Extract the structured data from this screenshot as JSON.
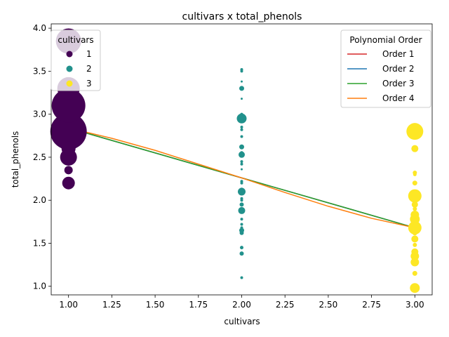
{
  "chart_data": {
    "type": "scatter",
    "title": "cultivars x total_phenols",
    "xlabel": "cultivars",
    "ylabel": "total_phenols",
    "xlim": [
      0.9,
      3.1
    ],
    "ylim": [
      0.9,
      4.05
    ],
    "x_ticks": [
      "1.00",
      "1.25",
      "1.50",
      "1.75",
      "2.00",
      "2.25",
      "2.50",
      "2.75",
      "3.00"
    ],
    "y_ticks": [
      "1.0",
      "1.5",
      "2.0",
      "2.5",
      "3.0",
      "3.5",
      "4.0"
    ],
    "grid": false,
    "scatter_series": [
      {
        "name": "1",
        "color": "#440154",
        "points": [
          {
            "x": 1,
            "y": 3.85,
            "size": 18
          },
          {
            "x": 1,
            "y": 3.3,
            "size": 16
          },
          {
            "x": 1,
            "y": 3.1,
            "size": 24
          },
          {
            "x": 1,
            "y": 2.8,
            "size": 26
          },
          {
            "x": 1,
            "y": 2.6,
            "size": 10
          },
          {
            "x": 1,
            "y": 2.5,
            "size": 12
          },
          {
            "x": 1,
            "y": 2.35,
            "size": 6
          },
          {
            "x": 1,
            "y": 2.2,
            "size": 9
          }
        ]
      },
      {
        "name": "2",
        "color": "#21918c",
        "points": [
          {
            "x": 2,
            "y": 3.52,
            "size": 2
          },
          {
            "x": 2,
            "y": 3.5,
            "size": 2
          },
          {
            "x": 2,
            "y": 3.38,
            "size": 1.5
          },
          {
            "x": 2,
            "y": 3.3,
            "size": 3.5
          },
          {
            "x": 2,
            "y": 3.18,
            "size": 1.5
          },
          {
            "x": 2,
            "y": 3.0,
            "size": 2
          },
          {
            "x": 2,
            "y": 2.95,
            "size": 7
          },
          {
            "x": 2,
            "y": 2.85,
            "size": 2
          },
          {
            "x": 2,
            "y": 2.82,
            "size": 2
          },
          {
            "x": 2,
            "y": 2.74,
            "size": 2
          },
          {
            "x": 2,
            "y": 2.62,
            "size": 3.5
          },
          {
            "x": 2,
            "y": 2.55,
            "size": 2.5
          },
          {
            "x": 2,
            "y": 2.53,
            "size": 4.5
          },
          {
            "x": 2,
            "y": 2.45,
            "size": 2
          },
          {
            "x": 2,
            "y": 2.42,
            "size": 2
          },
          {
            "x": 2,
            "y": 2.36,
            "size": 1.5
          },
          {
            "x": 2,
            "y": 2.22,
            "size": 2
          },
          {
            "x": 2,
            "y": 2.2,
            "size": 2
          },
          {
            "x": 2,
            "y": 2.13,
            "size": 2
          },
          {
            "x": 2,
            "y": 2.1,
            "size": 5.5
          },
          {
            "x": 2,
            "y": 2.02,
            "size": 2
          },
          {
            "x": 2,
            "y": 2.0,
            "size": 2
          },
          {
            "x": 2,
            "y": 1.95,
            "size": 3
          },
          {
            "x": 2,
            "y": 1.9,
            "size": 2
          },
          {
            "x": 2,
            "y": 1.88,
            "size": 5
          },
          {
            "x": 2,
            "y": 1.78,
            "size": 2
          },
          {
            "x": 2,
            "y": 1.72,
            "size": 2
          },
          {
            "x": 2,
            "y": 1.68,
            "size": 2
          },
          {
            "x": 2,
            "y": 1.65,
            "size": 3.5
          },
          {
            "x": 2,
            "y": 1.62,
            "size": 3
          },
          {
            "x": 2,
            "y": 1.45,
            "size": 2.5
          },
          {
            "x": 2,
            "y": 1.38,
            "size": 3
          },
          {
            "x": 2,
            "y": 1.1,
            "size": 2
          }
        ]
      },
      {
        "name": "3",
        "color": "#fde725",
        "points": [
          {
            "x": 3,
            "y": 2.8,
            "size": 12
          },
          {
            "x": 3,
            "y": 2.6,
            "size": 5
          },
          {
            "x": 3,
            "y": 2.32,
            "size": 3
          },
          {
            "x": 3,
            "y": 2.3,
            "size": 2.5
          },
          {
            "x": 3,
            "y": 2.2,
            "size": 3.5
          },
          {
            "x": 3,
            "y": 2.05,
            "size": 9.5
          },
          {
            "x": 3,
            "y": 1.95,
            "size": 4.5
          },
          {
            "x": 3,
            "y": 1.9,
            "size": 3
          },
          {
            "x": 3,
            "y": 1.83,
            "size": 6
          },
          {
            "x": 3,
            "y": 1.78,
            "size": 7
          },
          {
            "x": 3,
            "y": 1.7,
            "size": 3
          },
          {
            "x": 3,
            "y": 1.68,
            "size": 9.5
          },
          {
            "x": 3,
            "y": 1.62,
            "size": 3.5
          },
          {
            "x": 3,
            "y": 1.55,
            "size": 5
          },
          {
            "x": 3,
            "y": 1.48,
            "size": 3
          },
          {
            "x": 3,
            "y": 1.4,
            "size": 5
          },
          {
            "x": 3,
            "y": 1.35,
            "size": 6
          },
          {
            "x": 3,
            "y": 1.28,
            "size": 6
          },
          {
            "x": 3,
            "y": 1.15,
            "size": 3.5
          },
          {
            "x": 3,
            "y": 0.98,
            "size": 7
          }
        ]
      }
    ],
    "line_series": [
      {
        "name": "Order 1",
        "color": "#d62728",
        "x": [
          1,
          2,
          3
        ],
        "y": [
          2.84,
          2.26,
          1.68
        ]
      },
      {
        "name": "Order 2",
        "color": "#1f77b4",
        "x": [
          1,
          2,
          3
        ],
        "y": [
          2.84,
          2.26,
          1.68
        ]
      },
      {
        "name": "Order 3",
        "color": "#2ca02c",
        "x": [
          1,
          2,
          3
        ],
        "y": [
          2.84,
          2.26,
          1.68
        ]
      },
      {
        "name": "Order 4",
        "color": "#ff7f0e",
        "x": [
          1,
          1.25,
          1.5,
          1.75,
          2,
          2.25,
          2.5,
          2.75,
          3
        ],
        "y": [
          2.84,
          2.72,
          2.58,
          2.42,
          2.26,
          2.09,
          1.93,
          1.79,
          1.68
        ]
      }
    ],
    "legend_scatter": {
      "title": "cultivars",
      "placement": "top-left"
    },
    "legend_lines": {
      "title": "Polynomial Order",
      "placement": "top-right"
    }
  }
}
